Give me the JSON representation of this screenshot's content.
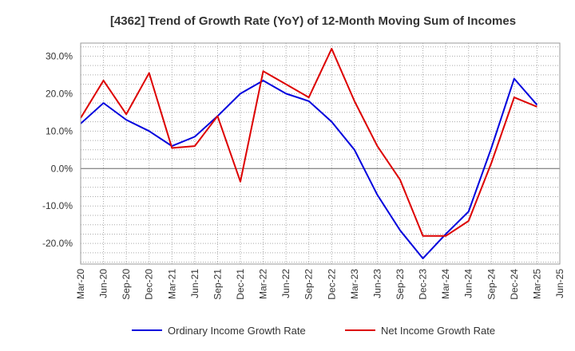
{
  "chart_data": {
    "type": "line",
    "title": "[4362]  Trend of Growth Rate (YoY) of 12-Month Moving Sum of Incomes",
    "xlabel": "",
    "ylabel": "",
    "x": [
      "Mar-20",
      "Jun-20",
      "Sep-20",
      "Dec-20",
      "Mar-21",
      "Jun-21",
      "Sep-21",
      "Dec-21",
      "Mar-22",
      "Jun-22",
      "Sep-22",
      "Dec-22",
      "Mar-23",
      "Jun-23",
      "Sep-23",
      "Dec-23",
      "Mar-24",
      "Jun-24",
      "Sep-24",
      "Dec-24",
      "Mar-25",
      "Jun-25"
    ],
    "y_ticks": [
      "30.0%",
      "20.0%",
      "10.0%",
      "0.0%",
      "-10.0%",
      "-20.0%"
    ],
    "y_tick_values": [
      30,
      20,
      10,
      0,
      -10,
      -20
    ],
    "ylim": [
      -25.5,
      33.5
    ],
    "grid": true,
    "legend_position": "bottom",
    "series": [
      {
        "name": "Ordinary Income Growth Rate",
        "color": "#0000dd",
        "values": [
          12.0,
          17.5,
          13.0,
          10.0,
          6.0,
          8.5,
          14.0,
          20.0,
          23.5,
          20.0,
          18.0,
          12.5,
          5.0,
          -7.0,
          -16.5,
          -24.0,
          -17.5,
          -11.5,
          5.5,
          24.0,
          17.0,
          null
        ]
      },
      {
        "name": "Net Income Growth Rate",
        "color": "#dd0000",
        "values": [
          13.5,
          23.5,
          14.5,
          25.5,
          5.5,
          6.0,
          14.0,
          -3.5,
          26.0,
          22.5,
          19.0,
          32.0,
          18.0,
          6.0,
          -3.0,
          -18.0,
          -18.0,
          -14.0,
          1.5,
          19.0,
          16.5,
          null
        ]
      }
    ]
  }
}
